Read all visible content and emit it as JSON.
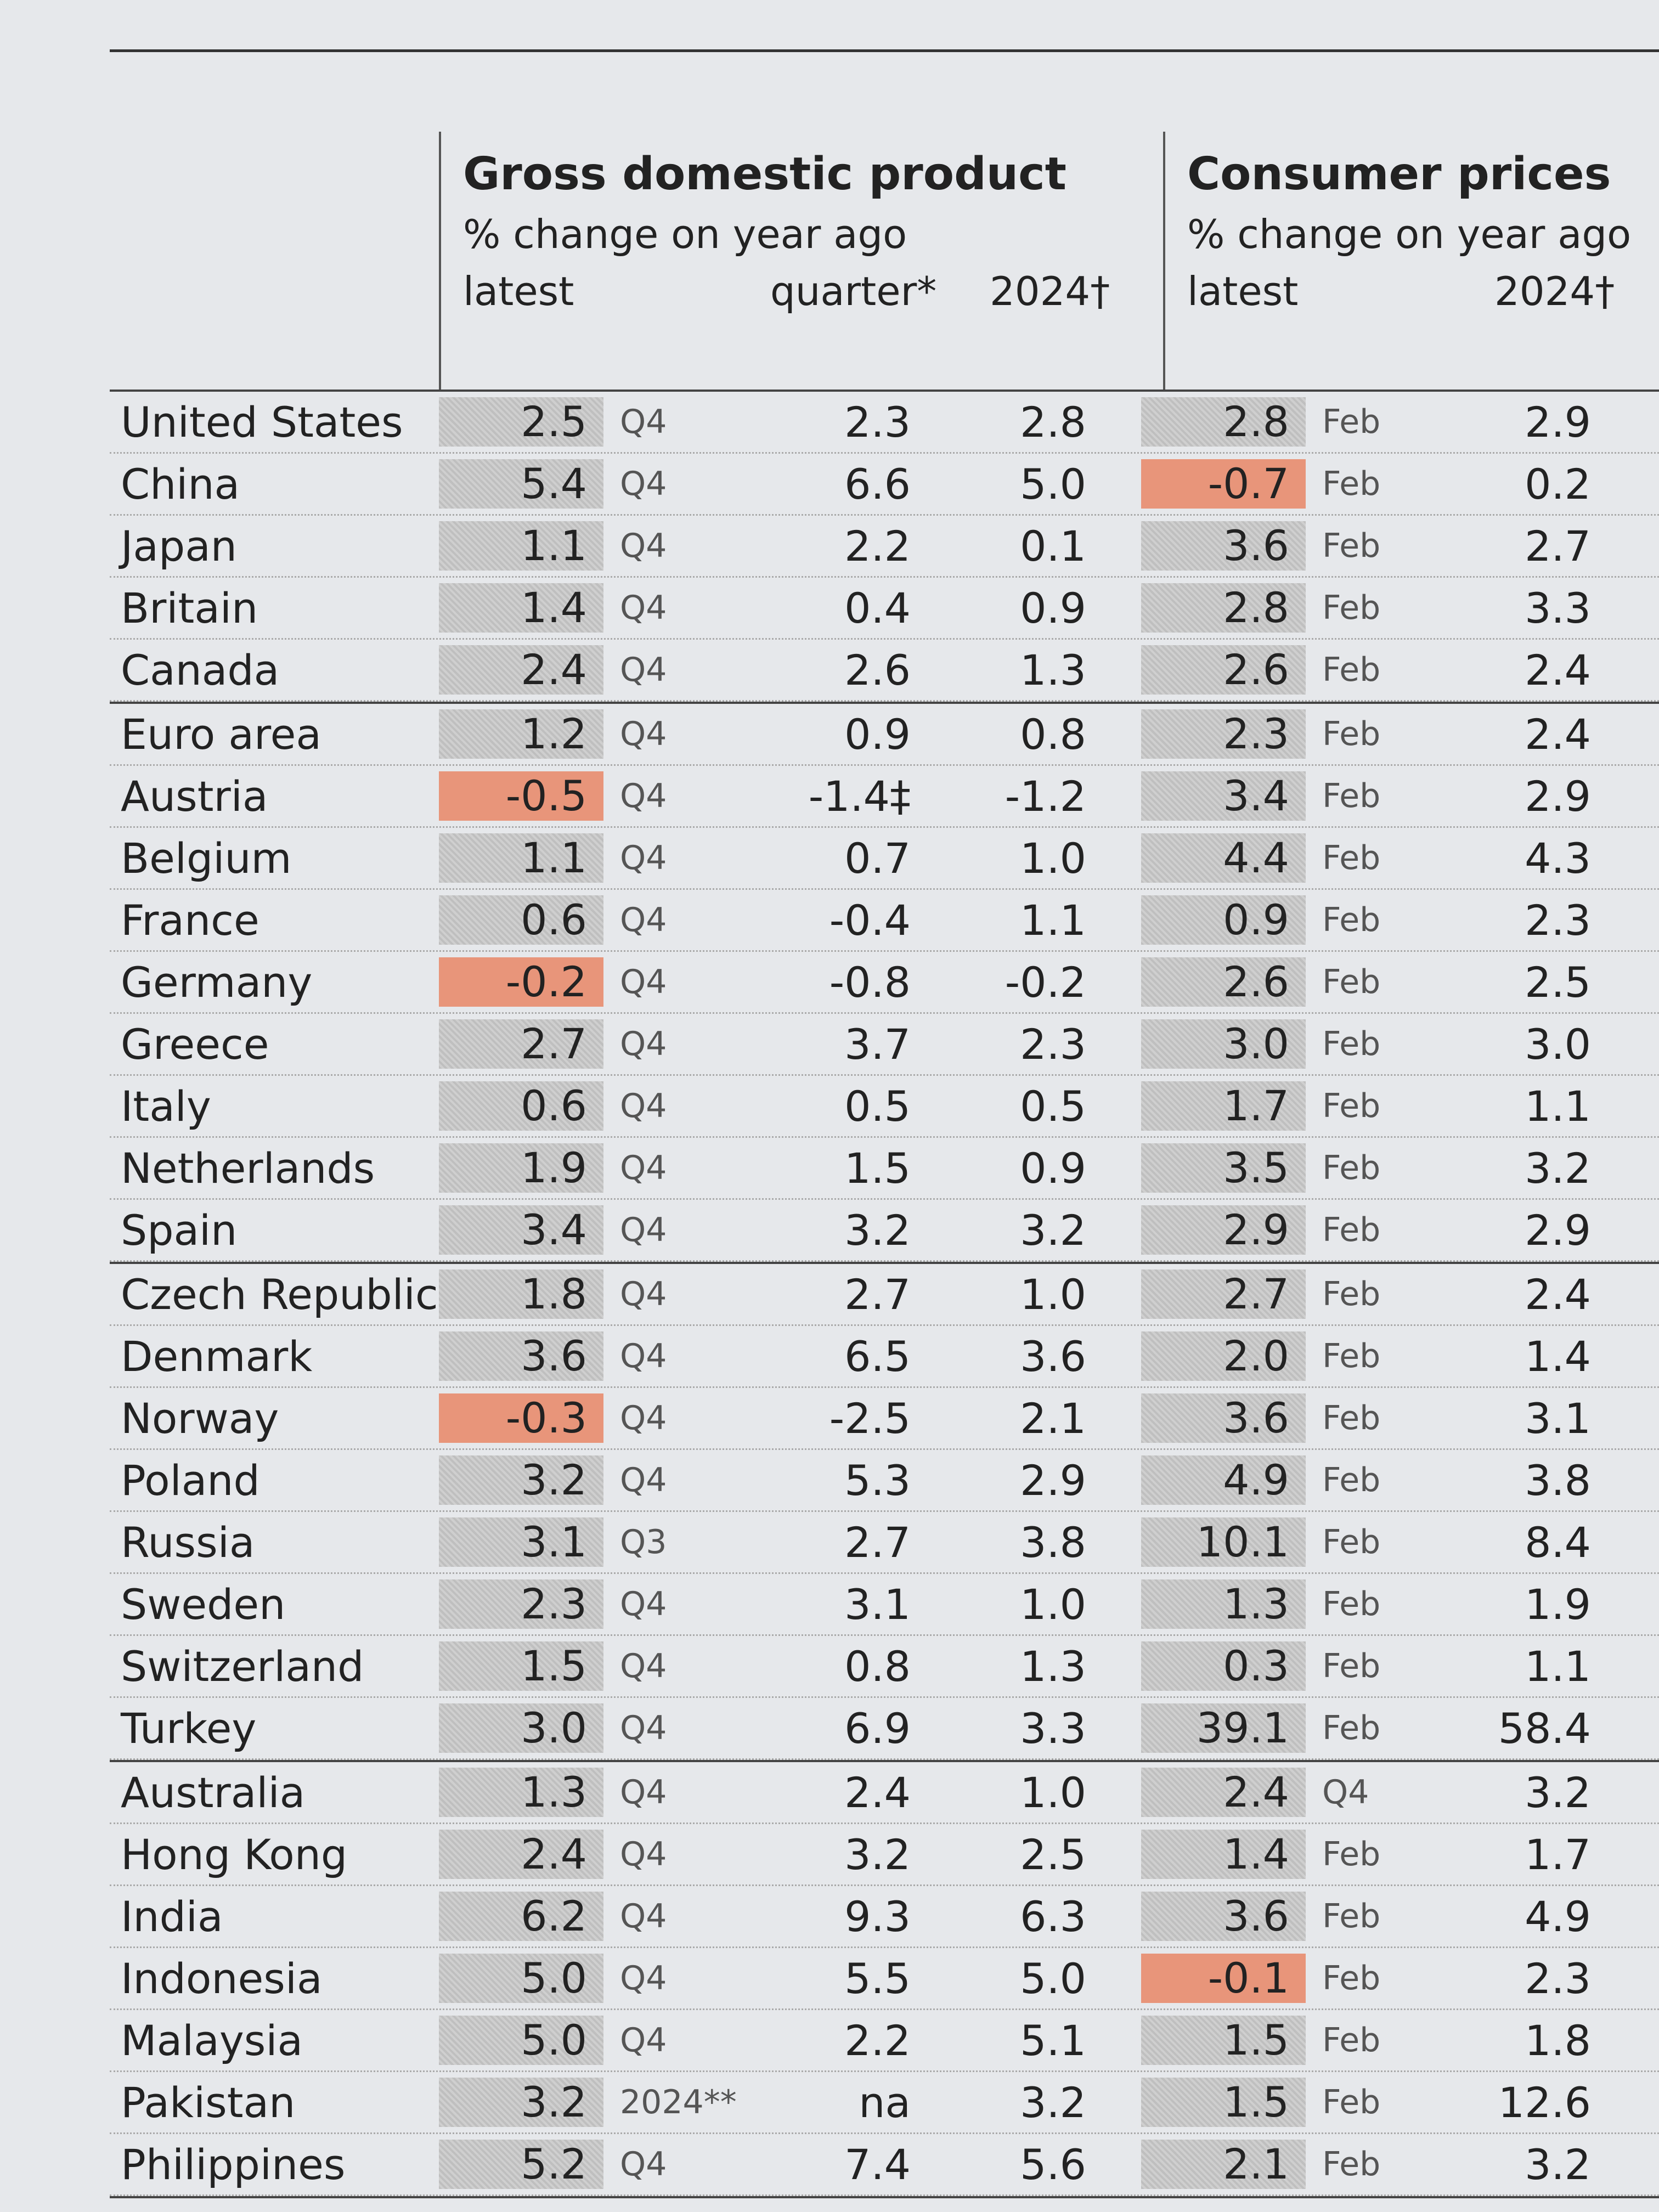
{
  "table": {
    "gdp": {
      "title": "Gross domestic product",
      "subtitle": "% change on year ago",
      "columns": [
        "latest",
        "quarter*",
        "2024†"
      ]
    },
    "cpi": {
      "title": "Consumer prices",
      "subtitle": "% change on year ago",
      "columns": [
        "latest",
        "2024†"
      ]
    },
    "groups": [
      [
        [
          "United States",
          "2.5",
          "Q4",
          "2.3",
          "2.8",
          "2.8",
          "Feb",
          "2.9"
        ],
        [
          "China",
          "5.4",
          "Q4",
          "6.6",
          "5.0",
          "-0.7",
          "Feb",
          "0.2"
        ],
        [
          "Japan",
          "1.1",
          "Q4",
          "2.2",
          "0.1",
          "3.6",
          "Feb",
          "2.7"
        ],
        [
          "Britain",
          "1.4",
          "Q4",
          "0.4",
          "0.9",
          "2.8",
          "Feb",
          "3.3"
        ],
        [
          "Canada",
          "2.4",
          "Q4",
          "2.6",
          "1.3",
          "2.6",
          "Feb",
          "2.4"
        ]
      ],
      [
        [
          "Euro area",
          "1.2",
          "Q4",
          "0.9",
          "0.8",
          "2.3",
          "Feb",
          "2.4"
        ],
        [
          "Austria",
          "-0.5",
          "Q4",
          "-1.4‡",
          "-1.2",
          "3.4",
          "Feb",
          "2.9"
        ],
        [
          "Belgium",
          "1.1",
          "Q4",
          "0.7",
          "1.0",
          "4.4",
          "Feb",
          "4.3"
        ],
        [
          "France",
          "0.6",
          "Q4",
          "-0.4",
          "1.1",
          "0.9",
          "Feb",
          "2.3"
        ],
        [
          "Germany",
          "-0.2",
          "Q4",
          "-0.8",
          "-0.2",
          "2.6",
          "Feb",
          "2.5"
        ],
        [
          "Greece",
          "2.7",
          "Q4",
          "3.7",
          "2.3",
          "3.0",
          "Feb",
          "3.0"
        ],
        [
          "Italy",
          "0.6",
          "Q4",
          "0.5",
          "0.5",
          "1.7",
          "Feb",
          "1.1"
        ],
        [
          "Netherlands",
          "1.9",
          "Q4",
          "1.5",
          "0.9",
          "3.5",
          "Feb",
          "3.2"
        ],
        [
          "Spain",
          "3.4",
          "Q4",
          "3.2",
          "3.2",
          "2.9",
          "Feb",
          "2.9"
        ]
      ],
      [
        [
          "Czech Republic",
          "1.8",
          "Q4",
          "2.7",
          "1.0",
          "2.7",
          "Feb",
          "2.4"
        ],
        [
          "Denmark",
          "3.6",
          "Q4",
          "6.5",
          "3.6",
          "2.0",
          "Feb",
          "1.4"
        ],
        [
          "Norway",
          "-0.3",
          "Q4",
          "-2.5",
          "2.1",
          "3.6",
          "Feb",
          "3.1"
        ],
        [
          "Poland",
          "3.2",
          "Q4",
          "5.3",
          "2.9",
          "4.9",
          "Feb",
          "3.8"
        ],
        [
          "Russia",
          "3.1",
          "Q3",
          "2.7",
          "3.8",
          "10.1",
          "Feb",
          "8.4"
        ],
        [
          "Sweden",
          "2.3",
          "Q4",
          "3.1",
          "1.0",
          "1.3",
          "Feb",
          "1.9"
        ],
        [
          "Switzerland",
          "1.5",
          "Q4",
          "0.8",
          "1.3",
          "0.3",
          "Feb",
          "1.1"
        ],
        [
          "Turkey",
          "3.0",
          "Q4",
          "6.9",
          "3.3",
          "39.1",
          "Feb",
          "58.4"
        ]
      ],
      [
        [
          "Australia",
          "1.3",
          "Q4",
          "2.4",
          "1.0",
          "2.4",
          "Q4",
          "3.2"
        ],
        [
          "Hong Kong",
          "2.4",
          "Q4",
          "3.2",
          "2.5",
          "1.4",
          "Feb",
          "1.7"
        ],
        [
          "India",
          "6.2",
          "Q4",
          "9.3",
          "6.3",
          "3.6",
          "Feb",
          "4.9"
        ],
        [
          "Indonesia",
          "5.0",
          "Q4",
          "5.5",
          "5.0",
          "-0.1",
          "Feb",
          "2.3"
        ],
        [
          "Malaysia",
          "5.0",
          "Q4",
          "2.2",
          "5.1",
          "1.5",
          "Feb",
          "1.8"
        ],
        [
          "Pakistan",
          "3.2",
          "2024**",
          "na",
          "3.2",
          "1.5",
          "Feb",
          "12.6"
        ],
        [
          "Philippines",
          "5.2",
          "Q4",
          "7.4",
          "5.6",
          "2.1",
          "Feb",
          "3.2"
        ]
      ]
    ]
  }
}
